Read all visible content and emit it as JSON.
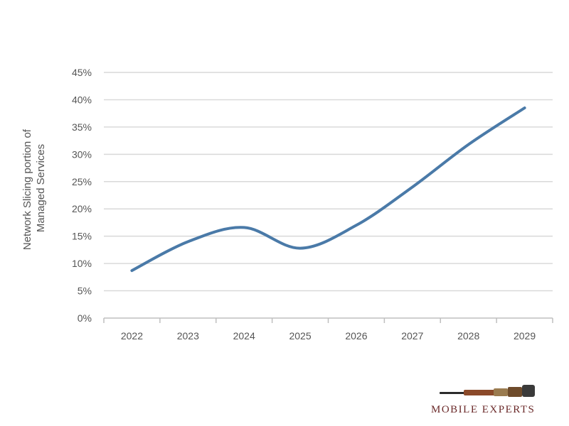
{
  "chart_data": {
    "type": "line",
    "title": "",
    "xlabel": "",
    "ylabel": "Network Slicing portion of Managed Services",
    "ylabel_lines": [
      "Network Slicing portion of",
      "Managed Services"
    ],
    "categories": [
      "2022",
      "2023",
      "2024",
      "2025",
      "2026",
      "2027",
      "2028",
      "2029"
    ],
    "series": [
      {
        "values": [
          0.087,
          0.14,
          0.166,
          0.128,
          0.17,
          0.24,
          0.318,
          0.385
        ]
      }
    ],
    "ylim": [
      0,
      0.45
    ],
    "yticks": [
      "0%",
      "5%",
      "10%",
      "15%",
      "20%",
      "25%",
      "30%",
      "35%",
      "40%",
      "45%"
    ],
    "grid": true,
    "line_color": "#4a7aa8",
    "grid_color": "#d9d9d9"
  },
  "brand": {
    "name": "MOBILE EXPERTS",
    "color": "#6b2a2a"
  }
}
